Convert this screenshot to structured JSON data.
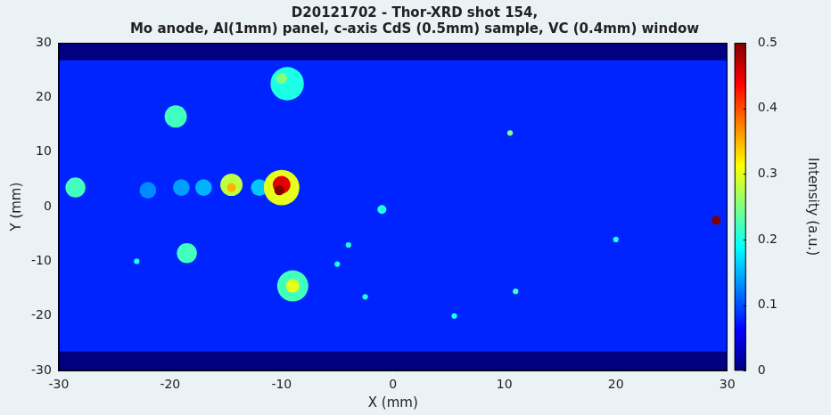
{
  "chart_data": {
    "type": "heatmap",
    "title": [
      "D20121702 - Thor-XRD shot 154,",
      "Mo anode, Al(1mm) panel, c-axis CdS (0.5mm) sample, VC (0.4mm) window"
    ],
    "x_label": "X (mm)",
    "y_label": "Y (mm)",
    "xlim": [
      -30,
      30
    ],
    "xticks": [
      -30,
      -20,
      -10,
      0,
      10,
      20,
      30
    ],
    "ylim": [
      -30,
      30
    ],
    "yticks": [
      -30,
      -20,
      -10,
      0,
      10,
      20,
      30
    ],
    "grid": false,
    "background": 0.08,
    "detector_ylim": [
      -26.5,
      26.8
    ],
    "spots": {
      "x": [
        -22,
        -19,
        -17,
        -12,
        -10,
        -10,
        -10.2,
        -14.5,
        -14.5,
        -9.5,
        -10,
        -19.5,
        -28.5,
        -18.5,
        -9,
        -9,
        29,
        -1,
        10.5,
        -4,
        -2.5,
        -23,
        11,
        5.5,
        -5,
        20
      ],
      "y": [
        3,
        3.5,
        3.5,
        3.5,
        3.5,
        4,
        3,
        4,
        3.5,
        22.5,
        23.5,
        16.5,
        3.5,
        -8.5,
        -14.5,
        -14.5,
        -2.5,
        -0.5,
        13.5,
        -7,
        -16.5,
        -10,
        -15.5,
        -20,
        -10.5,
        -6
      ],
      "values": [
        0.13,
        0.14,
        0.15,
        0.16,
        0.3,
        0.45,
        0.5,
        0.28,
        0.35,
        0.2,
        0.25,
        0.22,
        0.22,
        0.22,
        0.22,
        0.3,
        0.5,
        0.2,
        0.25,
        0.2,
        0.2,
        0.2,
        0.22,
        0.2,
        0.2,
        0.2
      ],
      "size": [
        1.5,
        1.5,
        1.5,
        1.5,
        3.2,
        1.6,
        0.9,
        2,
        0.8,
        3,
        1,
        2,
        1.8,
        1.8,
        2.8,
        1.2,
        0.8,
        0.8,
        0.5,
        0.5,
        0.5,
        0.5,
        0.5,
        0.5,
        0.5,
        0.5
      ]
    },
    "colorbar": {
      "label": "Intensity (a.u.)",
      "lim": [
        0,
        0.5
      ],
      "ticks": [
        0,
        0.1,
        0.2,
        0.3,
        0.4,
        0.5
      ]
    }
  }
}
